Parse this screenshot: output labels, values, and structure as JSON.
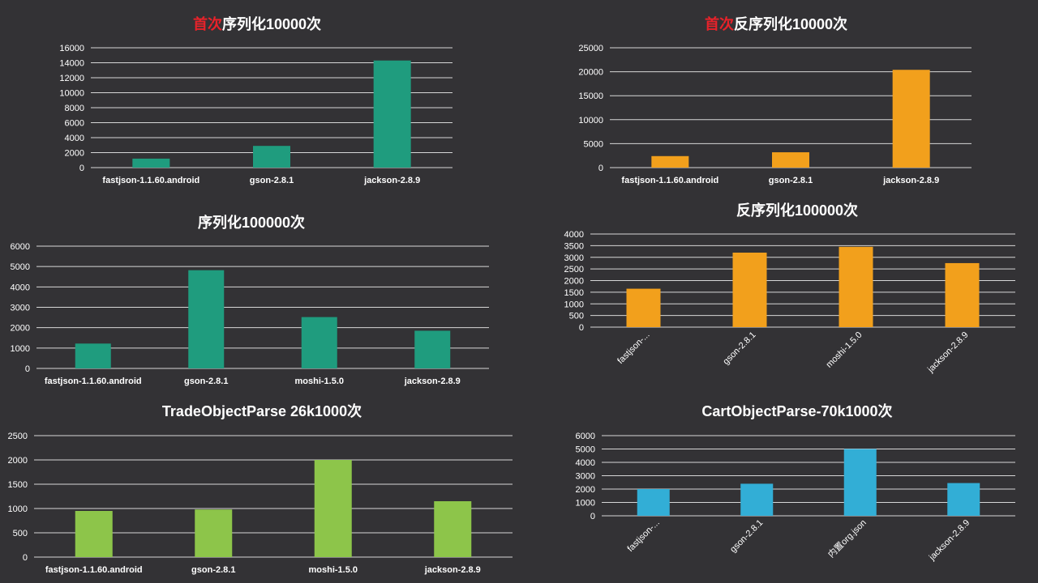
{
  "chart_data": [
    {
      "type": "bar",
      "title_accent": "首次",
      "title": "序列化10000次",
      "categories": [
        "fastjson-1.1.60.android",
        "gson-2.8.1",
        "jackson-2.8.9"
      ],
      "values": [
        1200,
        2900,
        14300
      ],
      "ylim": [
        0,
        16000
      ],
      "yticks": [
        0,
        2000,
        4000,
        6000,
        8000,
        10000,
        12000,
        14000,
        16000
      ],
      "color": "#1f9c7e",
      "grid": true
    },
    {
      "type": "bar",
      "title_accent": "首次",
      "title": "反序列化10000次",
      "categories": [
        "fastjson-1.1.60.android",
        "gson-2.8.1",
        "jackson-2.8.9"
      ],
      "values": [
        2400,
        3200,
        20400
      ],
      "ylim": [
        0,
        25000
      ],
      "yticks": [
        0,
        5000,
        10000,
        15000,
        20000,
        25000
      ],
      "color": "#f2a01c",
      "grid": true
    },
    {
      "type": "bar",
      "title_accent": "",
      "title": "序列化100000次",
      "categories": [
        "fastjson-1.1.60.android",
        "gson-2.8.1",
        "moshi-1.5.0",
        "jackson-2.8.9"
      ],
      "values": [
        1220,
        4820,
        2520,
        1850
      ],
      "ylim": [
        0,
        6000
      ],
      "yticks": [
        0,
        1000,
        2000,
        3000,
        4000,
        5000,
        6000
      ],
      "color": "#1f9c7e",
      "grid": true
    },
    {
      "type": "bar",
      "title_accent": "",
      "title": "反序列化100000次",
      "categories": [
        "fastjson-...",
        "gson-2.8.1",
        "moshi-1.5.0",
        "jackson-2.8.9"
      ],
      "values": [
        1650,
        3200,
        3450,
        2750
      ],
      "ylim": [
        0,
        4000
      ],
      "yticks": [
        0,
        500,
        1000,
        1500,
        2000,
        2500,
        3000,
        3500,
        4000
      ],
      "color": "#f2a01c",
      "grid": true,
      "rotated_labels": true
    },
    {
      "type": "bar",
      "title_accent": "",
      "title": "TradeObjectParse 26k1000次",
      "categories": [
        "fastjson-1.1.60.android",
        "gson-2.8.1",
        "moshi-1.5.0",
        "jackson-2.8.9"
      ],
      "values": [
        950,
        980,
        2000,
        1150
      ],
      "ylim": [
        0,
        2500
      ],
      "yticks": [
        0,
        500,
        1000,
        1500,
        2000,
        2500
      ],
      "color": "#8dc54a",
      "grid": true
    },
    {
      "type": "bar",
      "title_accent": "",
      "title": "CartObjectParse-70k1000次",
      "categories": [
        "fastjson-...",
        "gson-2.8.1",
        "内置org.json",
        "jackson-2.8.9"
      ],
      "values": [
        2000,
        2400,
        5000,
        2450
      ],
      "ylim": [
        0,
        6000
      ],
      "yticks": [
        0,
        1000,
        2000,
        3000,
        4000,
        5000,
        6000
      ],
      "color": "#32aed6",
      "grid": true,
      "rotated_labels": true
    }
  ]
}
